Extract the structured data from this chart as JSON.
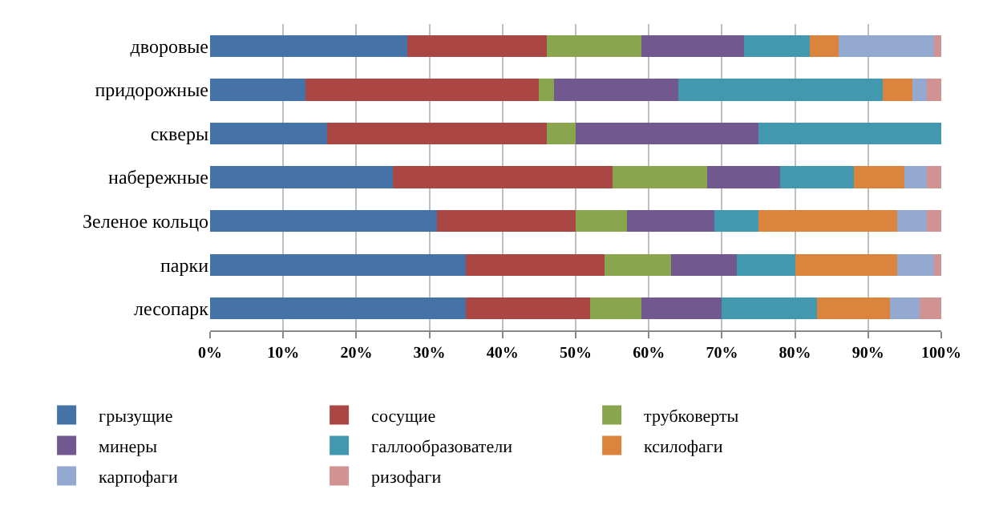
{
  "chart_data": {
    "type": "bar",
    "orientation": "horizontal",
    "stacked": true,
    "categories": [
      "дворовые",
      "придорожные",
      "скверы",
      "набережные",
      "Зеленое кольцо",
      "парки",
      "лесопарк"
    ],
    "series": [
      {
        "name": "грызущие",
        "color": "#4572a7",
        "values": [
          27,
          13,
          16,
          25,
          31,
          35,
          35
        ]
      },
      {
        "name": "сосущие",
        "color": "#aa4643",
        "values": [
          19,
          32,
          30,
          30,
          19,
          19,
          17
        ]
      },
      {
        "name": "трубковерты",
        "color": "#89a54e",
        "values": [
          13,
          2,
          4,
          13,
          7,
          9,
          7
        ]
      },
      {
        "name": "минеры",
        "color": "#71588f",
        "values": [
          14,
          17,
          25,
          10,
          12,
          9,
          11
        ]
      },
      {
        "name": "галлообразователи",
        "color": "#4198af",
        "values": [
          9,
          28,
          25,
          10,
          6,
          8,
          13
        ]
      },
      {
        "name": "ксилофаги",
        "color": "#db843d",
        "values": [
          4,
          4,
          0,
          7,
          19,
          14,
          10
        ]
      },
      {
        "name": "карпофаги",
        "color": "#93a9cf",
        "values": [
          13,
          2,
          0,
          3,
          4,
          5,
          4
        ]
      },
      {
        "name": "ризофаги",
        "color": "#d19392",
        "values": [
          1,
          2,
          0,
          2,
          2,
          1,
          3
        ]
      }
    ],
    "xlim": [
      0,
      100
    ],
    "xticks": [
      {
        "value": 0,
        "label": "0%"
      },
      {
        "value": 10,
        "label": "10%"
      },
      {
        "value": 20,
        "label": "20%"
      },
      {
        "value": 30,
        "label": "30%"
      },
      {
        "value": 40,
        "label": "40%"
      },
      {
        "value": 50,
        "label": "50%"
      },
      {
        "value": 60,
        "label": "60%"
      },
      {
        "value": 70,
        "label": "70%"
      },
      {
        "value": 80,
        "label": "80%"
      },
      {
        "value": 90,
        "label": "90%"
      },
      {
        "value": 100,
        "label": "100%"
      }
    ],
    "grid": "x",
    "legend": "bottom"
  }
}
